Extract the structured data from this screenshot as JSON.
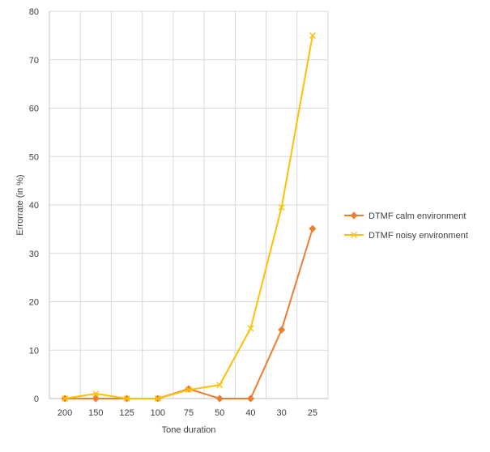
{
  "chart_data": {
    "type": "line",
    "title": "",
    "xlabel": "Tone duration",
    "ylabel": "Errorrate (in %)",
    "categories": [
      "200",
      "150",
      "125",
      "100",
      "75",
      "50",
      "40",
      "30",
      "25"
    ],
    "ylim": [
      0,
      80
    ],
    "yticks": [
      0,
      10,
      20,
      30,
      40,
      50,
      60,
      70,
      80
    ],
    "grid": true,
    "legend_position": "right",
    "series": [
      {
        "name": "DTMF calm environment",
        "values": [
          0,
          0,
          0,
          0,
          2,
          0,
          0,
          14.2,
          35.1
        ],
        "color": "#ED7D31",
        "marker": "diamond"
      },
      {
        "name": "DTMF noisy environment",
        "values": [
          0,
          1,
          0,
          0,
          1.8,
          2.8,
          14.5,
          39.5,
          75
        ],
        "color": "#FFC000",
        "marker": "x"
      }
    ]
  }
}
